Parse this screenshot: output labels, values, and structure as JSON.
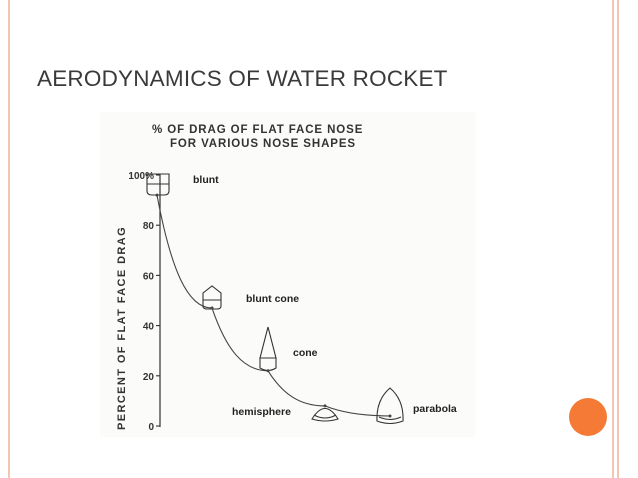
{
  "slide": {
    "title": "AERODYNAMICS OF WATER ROCKET",
    "accent_color": "#f47a36",
    "frame_color": "#f2c6b0"
  },
  "chart_data": {
    "type": "line",
    "title": "% OF DRAG OF FLAT FACE NOSE",
    "subtitle": "FOR VARIOUS NOSE SHAPES",
    "ylabel": "PERCENT OF FLAT FACE DRAG",
    "xlabel": "",
    "ylim": [
      0,
      100
    ],
    "yticks": [
      "0",
      "20",
      "40",
      "60",
      "80",
      "100%"
    ],
    "ytick_values": [
      0,
      20,
      40,
      60,
      80,
      100
    ],
    "grid": false,
    "categories": [
      "blunt",
      "blunt cone",
      "cone",
      "hemisphere",
      "parabola"
    ],
    "values": [
      92,
      47,
      22,
      8,
      4
    ],
    "annotations": [
      "blunt",
      "blunt cone",
      "cone",
      "hemisphere",
      "parabola"
    ]
  }
}
